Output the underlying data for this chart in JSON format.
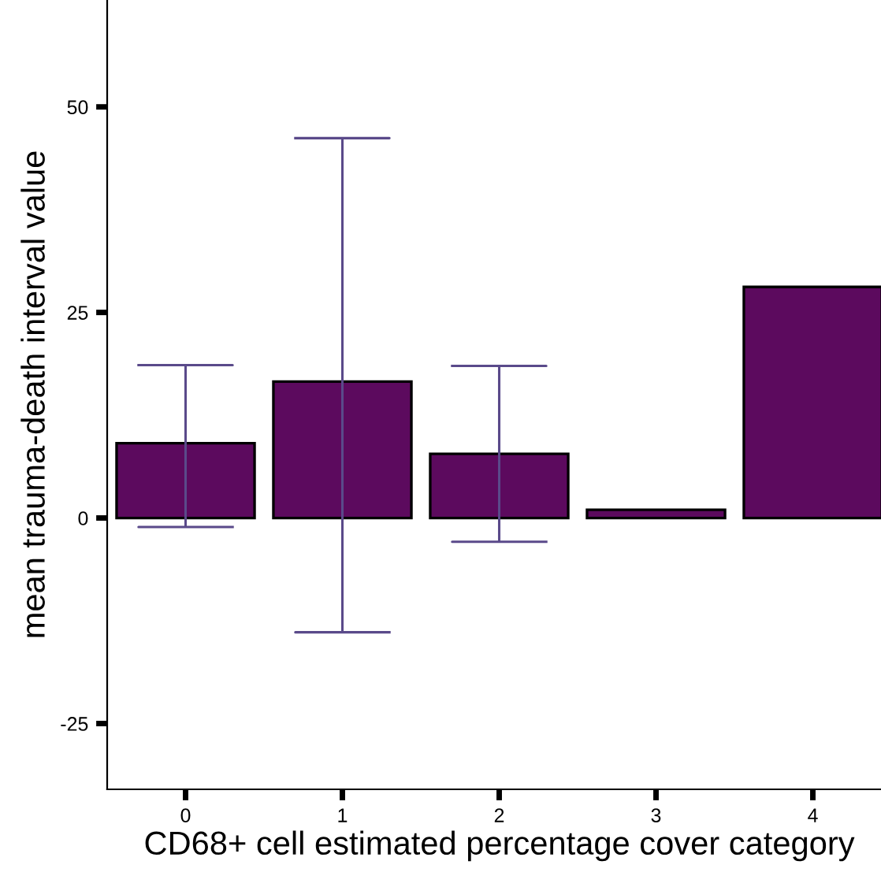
{
  "chart_data": {
    "type": "bar",
    "xlabel": "CD68+ cell estimated percentage cover category",
    "ylabel": "mean trauma-death interval value",
    "categories": [
      "0",
      "1",
      "2",
      "3",
      "4"
    ],
    "values": [
      9.1,
      16.6,
      7.8,
      1.0,
      28.1
    ],
    "errors": [
      [
        -1.1,
        18.6
      ],
      [
        -13.9,
        46.2
      ],
      [
        -2.9,
        18.5
      ],
      null,
      null
    ],
    "color": "#5c0a5e",
    "ylim": [
      -33,
      63
    ],
    "yticks": [
      -25,
      0,
      25,
      50
    ],
    "grid": false,
    "legend": false
  }
}
